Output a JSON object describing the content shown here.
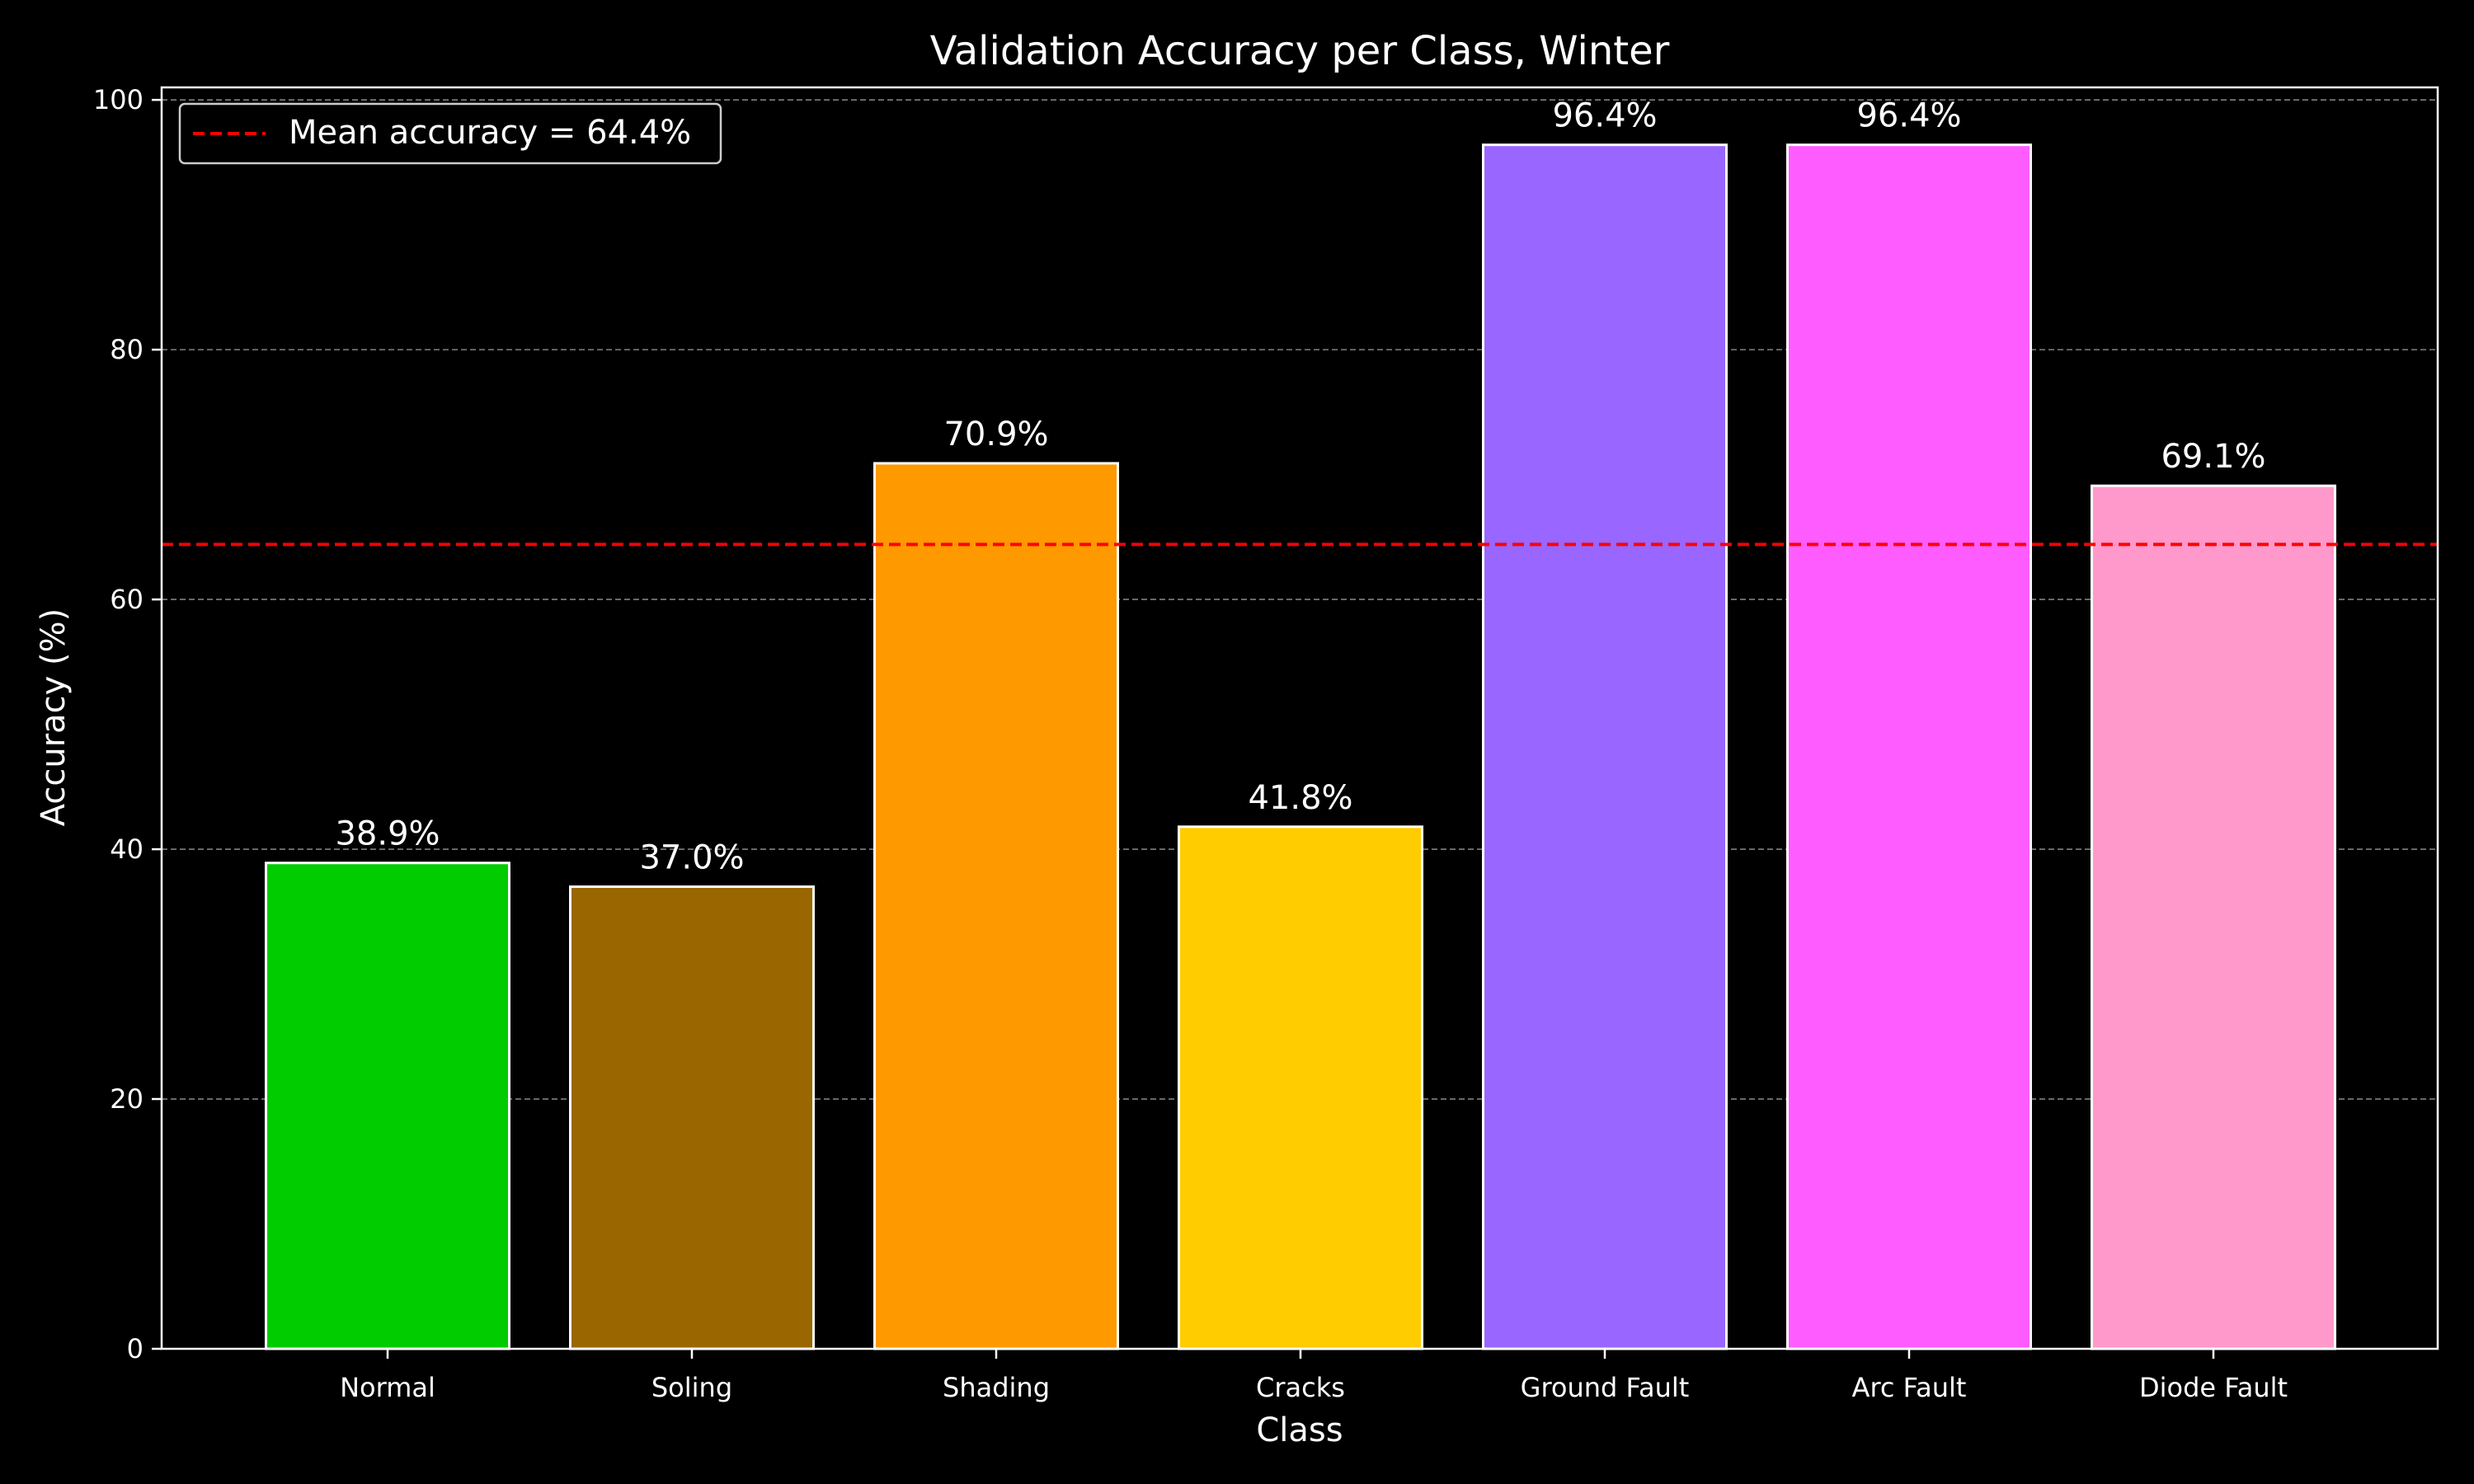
{
  "chart_data": {
    "type": "bar",
    "title": "Validation Accuracy per Class, Winter",
    "xlabel": "Class",
    "ylabel": "Accuracy (%)",
    "categories": [
      "Normal",
      "Soling",
      "Shading",
      "Cracks",
      "Ground Fault",
      "Arc Fault",
      "Diode Fault"
    ],
    "values": [
      38.9,
      37.0,
      70.9,
      41.8,
      96.4,
      96.4,
      69.1
    ],
    "data_labels": [
      "38.9%",
      "37.0%",
      "70.9%",
      "41.8%",
      "96.4%",
      "96.4%",
      "69.1%"
    ],
    "colors": [
      "#00cc00",
      "#996600",
      "#ff9900",
      "#ffcc00",
      "#9966ff",
      "#ff5cff",
      "#ff99cc"
    ],
    "ylim": [
      0,
      101
    ],
    "yticks": [
      0,
      20,
      40,
      60,
      80,
      100
    ],
    "ytick_labels": [
      "0",
      "20",
      "40",
      "60",
      "80",
      "100"
    ],
    "grid": "y-dashed",
    "reference_line": {
      "value": 64.4,
      "label": "Mean accuracy = 64.4%",
      "color": "#ff0000",
      "style": "dashed"
    },
    "legend_placement": "top-left",
    "background": "#000000"
  }
}
